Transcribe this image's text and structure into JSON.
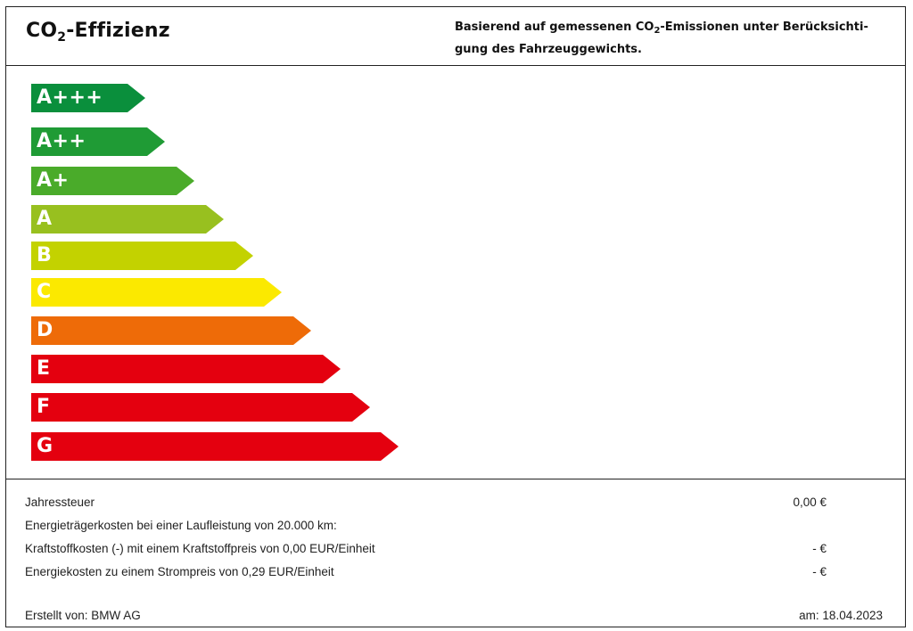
{
  "header": {
    "title_main": "CO",
    "title_sub": "2",
    "title_rest": "-Effizienz",
    "desc_part1": "Basierend auf gemessenen CO",
    "desc_sub": "2",
    "desc_part2": "-Emissionen unter Berücksichti-",
    "desc_line2": "gung des Fahrzeuggewichts."
  },
  "classes": [
    {
      "label": "A+++",
      "color": "#0a8f3c"
    },
    {
      "label": "A++",
      "color": "#1f9b35"
    },
    {
      "label": "A+",
      "color": "#4aab2a"
    },
    {
      "label": "A",
      "color": "#98c01f"
    },
    {
      "label": "B",
      "color": "#c3d200"
    },
    {
      "label": "C",
      "color": "#fbe900"
    },
    {
      "label": "D",
      "color": "#ee6b08"
    },
    {
      "label": "E",
      "color": "#e4000f"
    },
    {
      "label": "F",
      "color": "#e4000f"
    },
    {
      "label": "G",
      "color": "#e4000f"
    }
  ],
  "costs": {
    "tax_label": "Jahressteuer",
    "tax_value": "0,00 €",
    "energy_label": "Energieträgerkosten bei einer Laufleistung von 20.000 km:",
    "fuel_label": "Kraftstoffkosten (-) mit einem Kraftstoffpreis von 0,00 EUR/Einheit",
    "fuel_value": "- €",
    "power_label": "Energiekosten zu einem Strompreis von 0,29 EUR/Einheit",
    "power_value": "- €"
  },
  "footer": {
    "created_by": "Erstellt von: BMW AG",
    "date": "am: 18.04.2023"
  }
}
